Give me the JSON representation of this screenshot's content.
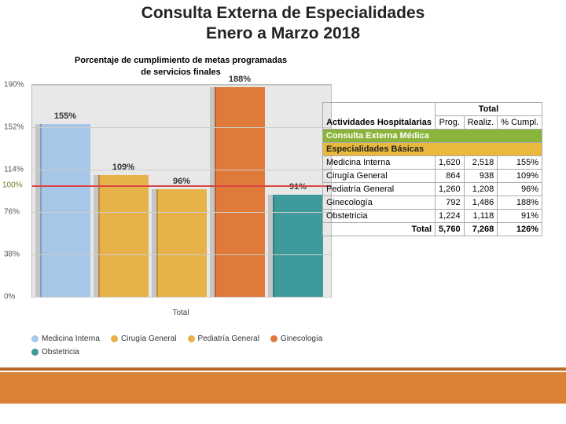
{
  "title": {
    "line1": "Consulta Externa de Especialidades",
    "line2": "Enero a Marzo 2018"
  },
  "chart": {
    "type": "bar",
    "title_line1": "Porcentaje de cumplimiento de metas programadas",
    "title_line2": "de servicios finales",
    "background_color": "#e8e8e8",
    "grid_color": "#cccccc",
    "reference_line": {
      "value": 100,
      "color": "#d94545",
      "label": "100%"
    },
    "ymax": 190,
    "yticks": [
      0,
      38,
      76,
      114,
      152,
      190
    ],
    "ytick_labels": [
      "0%",
      "38%",
      "76%",
      "114%",
      "152%",
      "190%"
    ],
    "x_axis_label": "Total",
    "series": [
      {
        "name": "Medicina Interna",
        "value": 155,
        "label": "155%",
        "color": "#a7c7e8"
      },
      {
        "name": "Cirugía General",
        "value": 109,
        "label": "109%",
        "color": "#e8b24a"
      },
      {
        "name": "Pediatría General",
        "value": 96,
        "label": "96%",
        "color": "#e8b24a"
      },
      {
        "name": "Ginecología",
        "value": 188,
        "label": "188%",
        "color": "#e07a3a"
      },
      {
        "name": "Obstetricia",
        "value": 91,
        "label": "91%",
        "color": "#3f9b9b"
      }
    ],
    "legend_colors": {
      "Medicina Interna": "#a7c7e8",
      "Cirugía General": "#e8b24a",
      "Pediatría General": "#e8b24a",
      "Ginecología": "#e07a3a",
      "Obstetricia": "#3f9b9b"
    }
  },
  "table": {
    "header_top_label": "Actividades Hospitalarias",
    "header_total": "Total",
    "sub_headers": [
      "Prog.",
      "Realiz.",
      "% Cumpl."
    ],
    "section_green": "Consulta Externa Médica",
    "section_yellow": "Especialidades Básicas",
    "rows": [
      {
        "label": "Medicina Interna",
        "prog": "1,620",
        "real": "2,518",
        "pct": "155%"
      },
      {
        "label": "Cirugía General",
        "prog": "864",
        "real": "938",
        "pct": "109%"
      },
      {
        "label": "Pediatría General",
        "prog": "1,260",
        "real": "1,208",
        "pct": "96%"
      },
      {
        "label": "Ginecología",
        "prog": "792",
        "real": "1,486",
        "pct": "188%"
      },
      {
        "label": "Obstetricia",
        "prog": "1,224",
        "real": "1,118",
        "pct": "91%"
      }
    ],
    "total_row": {
      "label": "Total",
      "prog": "5,760",
      "real": "7,268",
      "pct": "126%"
    },
    "green_bg": "#8bb53a",
    "yellow_bg": "#e8b93c"
  },
  "footer": {
    "band_color": "#d98236",
    "accent_color": "#b96a28"
  }
}
